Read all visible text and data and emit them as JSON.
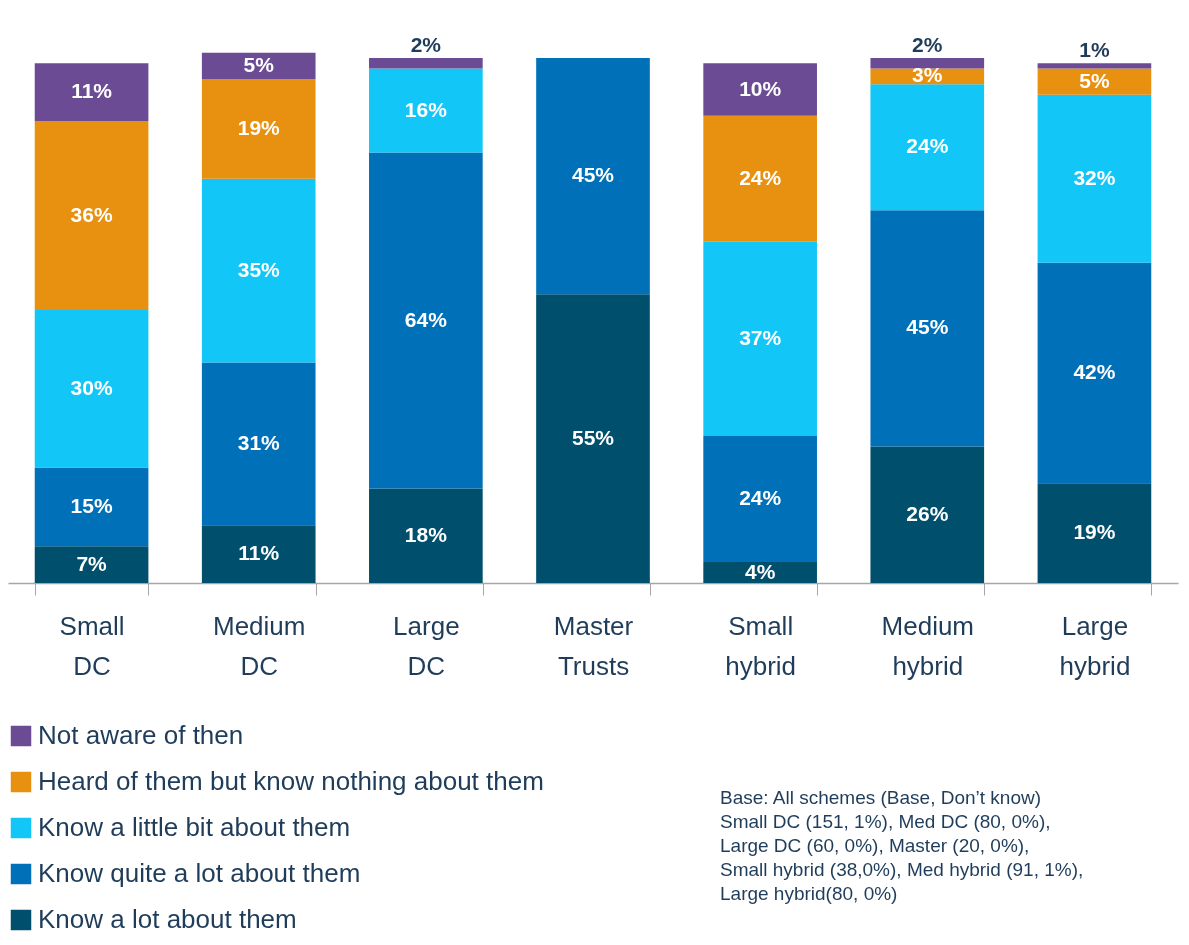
{
  "chart_data": {
    "type": "bar",
    "stacked": true,
    "legend": "bottom left",
    "categories": [
      "Small DC",
      "Medium DC",
      "Large DC",
      "Master Trusts",
      "Small hybrid",
      "Medium hybrid",
      "Large hybrid"
    ],
    "series": [
      {
        "name": "Know a lot about them",
        "color": "#004f6d",
        "values": [
          7,
          11,
          18,
          55,
          4,
          26,
          19
        ],
        "value_labels": [
          "7%",
          "11%",
          "18%",
          "55%",
          "4%",
          "26%",
          "19%"
        ]
      },
      {
        "name": "Know quite a lot about them",
        "color": "#0071b9",
        "values": [
          15,
          31,
          64,
          45,
          24,
          45,
          42
        ],
        "value_labels": [
          "15%",
          "31%",
          "64%",
          "45%",
          "24%",
          "45%",
          "42%"
        ]
      },
      {
        "name": "Know a little bit about them",
        "color": "#12c7f7",
        "values": [
          30,
          35,
          16,
          null,
          37,
          24,
          32
        ],
        "value_labels": [
          "30%",
          "35%",
          "16%",
          null,
          "37%",
          "24%",
          "32%"
        ]
      },
      {
        "name": "Heard of them but know nothing about them",
        "color": "#e8900f",
        "values": [
          36,
          19,
          null,
          null,
          24,
          3,
          5
        ],
        "value_labels": [
          "36%",
          "19%",
          null,
          null,
          "24%",
          "3%",
          "5%"
        ]
      },
      {
        "name": "Not aware of then",
        "color": "#6b4c94",
        "values": [
          11,
          5,
          2,
          null,
          10,
          2,
          1
        ],
        "value_labels": [
          "11%",
          "5%",
          "2%",
          null,
          "10%",
          "2%",
          "1%"
        ]
      }
    ],
    "annotations": [
      "Base: All schemes (Base, Don’t know)",
      "Small DC (151, 1%), Med DC (80, 0%),",
      "Large  DC (60, 0%), Master (20, 0%),",
      "Small hybrid (38,0%), Med hybrid (91, 1%),",
      "Large hybrid(80, 0%)"
    ]
  }
}
